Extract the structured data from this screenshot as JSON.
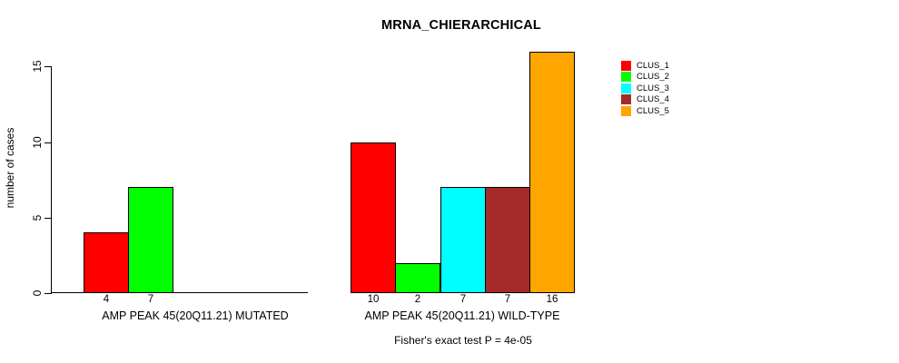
{
  "chart_data": {
    "type": "bar",
    "title": "MRNA_CHIERARCHICAL",
    "ylabel": "number of cases",
    "ylim": [
      0,
      16
    ],
    "yticks": [
      0,
      5,
      10,
      15
    ],
    "grid": false,
    "legend_position": "top-right",
    "legend": [
      {
        "label": "CLUS_1",
        "color": "#FF0000"
      },
      {
        "label": "CLUS_2",
        "color": "#00FF00"
      },
      {
        "label": "CLUS_3",
        "color": "#00FFFF"
      },
      {
        "label": "CLUS_4",
        "color": "#A52A2A"
      },
      {
        "label": "CLUS_5",
        "color": "#FFA500"
      }
    ],
    "groups": [
      {
        "label": "AMP PEAK 45(20Q11.21) MUTATED",
        "slots": 5,
        "bars": [
          {
            "series": "CLUS_1",
            "value": 4,
            "color": "#FF0000",
            "label": "4"
          },
          {
            "series": "CLUS_2",
            "value": 7,
            "color": "#00FF00",
            "label": "7"
          }
        ]
      },
      {
        "label": "AMP PEAK 45(20Q11.21) WILD-TYPE",
        "slots": 5,
        "bars": [
          {
            "series": "CLUS_1",
            "value": 10,
            "color": "#FF0000",
            "label": "10"
          },
          {
            "series": "CLUS_2",
            "value": 2,
            "color": "#00FF00",
            "label": "2"
          },
          {
            "series": "CLUS_3",
            "value": 7,
            "color": "#00FFFF",
            "label": "7"
          },
          {
            "series": "CLUS_4",
            "value": 7,
            "color": "#A52A2A",
            "label": "7"
          },
          {
            "series": "CLUS_5",
            "value": 16,
            "color": "#FFA500",
            "label": "16"
          }
        ]
      }
    ],
    "footnote": "Fisher's exact test P = 4e-05"
  }
}
